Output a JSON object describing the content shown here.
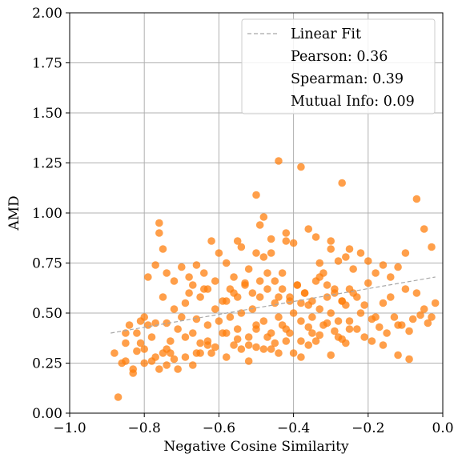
{
  "chart_data": {
    "type": "scatter",
    "xlabel": "Negative Cosine Similarity",
    "ylabel": "AMD",
    "xlim": [
      -1.0,
      0.0
    ],
    "ylim": [
      0.0,
      2.0
    ],
    "xticks": [
      "−1.0",
      "−0.8",
      "−0.6",
      "−0.4",
      "−0.2",
      "0.0"
    ],
    "xtick_values": [
      -1.0,
      -0.8,
      -0.6,
      -0.4,
      -0.2,
      0.0
    ],
    "yticks": [
      "0.00",
      "0.25",
      "0.50",
      "0.75",
      "1.00",
      "1.25",
      "1.50",
      "1.75",
      "2.00"
    ],
    "ytick_values": [
      0,
      0.25,
      0.5,
      0.75,
      1.0,
      1.25,
      1.5,
      1.75,
      2.0
    ],
    "grid": true,
    "legend_position": "top-right",
    "legend": {
      "fit_label": "Linear Fit",
      "pearson": "Pearson: 0.36",
      "spearman": "Spearman: 0.39",
      "mutual_info": "Mutual Info: 0.09"
    },
    "fit_line": {
      "x": [
        -0.89,
        -0.02
      ],
      "y": [
        0.4,
        0.68
      ]
    },
    "colors": {
      "points": "#ff7f0e",
      "fit": "#a8a8a8",
      "grid": "#b0b0b0"
    },
    "series": [
      {
        "x": [
          -0.87,
          -0.86,
          -0.85,
          -0.83,
          -0.82,
          -0.81,
          -0.8,
          -0.79,
          -0.78,
          -0.77,
          -0.76,
          -0.76,
          -0.75,
          -0.75,
          -0.74,
          -0.73,
          -0.72,
          -0.71,
          -0.7,
          -0.69,
          -0.68,
          -0.67,
          -0.66,
          -0.65,
          -0.64,
          -0.63,
          -0.62,
          -0.61,
          -0.6,
          -0.59,
          -0.58,
          -0.57,
          -0.56,
          -0.55,
          -0.54,
          -0.53,
          -0.52,
          -0.51,
          -0.5,
          -0.49,
          -0.48,
          -0.47,
          -0.46,
          -0.45,
          -0.44,
          -0.43,
          -0.42,
          -0.41,
          -0.4,
          -0.39,
          -0.38,
          -0.37,
          -0.36,
          -0.35,
          -0.34,
          -0.33,
          -0.32,
          -0.31,
          -0.3,
          -0.29,
          -0.28,
          -0.27,
          -0.26,
          -0.25,
          -0.24,
          -0.22,
          -0.2,
          -0.18,
          -0.16,
          -0.14,
          -0.12,
          -0.1,
          -0.08,
          -0.07,
          -0.05,
          -0.03,
          -0.02,
          -0.88,
          -0.85,
          -0.8,
          -0.77,
          -0.74,
          -0.72,
          -0.69,
          -0.66,
          -0.63,
          -0.61,
          -0.58,
          -0.55,
          -0.52,
          -0.5,
          -0.47,
          -0.45,
          -0.43,
          -0.41,
          -0.38,
          -0.36,
          -0.33,
          -0.31,
          -0.29,
          -0.27,
          -0.25,
          -0.23,
          -0.21,
          -0.19,
          -0.17,
          -0.15,
          -0.13,
          -0.11,
          -0.09,
          -0.06,
          -0.04,
          -0.44,
          -0.42,
          -0.4,
          -0.38,
          -0.46,
          -0.48,
          -0.5,
          -0.52,
          -0.54,
          -0.56,
          -0.58,
          -0.36,
          -0.34,
          -0.32,
          -0.3,
          -0.28,
          -0.6,
          -0.62,
          -0.64,
          -0.66,
          -0.68,
          -0.7,
          -0.72,
          -0.74,
          -0.26,
          -0.24,
          -0.22,
          -0.2,
          -0.18,
          -0.16,
          -0.14,
          -0.12,
          -0.1,
          -0.45,
          -0.43,
          -0.41,
          -0.39,
          -0.37,
          -0.35,
          -0.47,
          -0.49,
          -0.51,
          -0.53,
          -0.55,
          -0.57,
          -0.59,
          -0.33,
          -0.31,
          -0.29,
          -0.61,
          -0.63,
          -0.65,
          -0.67,
          -0.27,
          -0.25,
          -0.23,
          -0.21,
          -0.44,
          -0.38,
          -0.52,
          -0.48,
          -0.42,
          -0.36,
          -0.58,
          -0.56,
          -0.46,
          -0.4,
          -0.34,
          -0.3,
          -0.28,
          -0.26,
          -0.54,
          -0.5,
          -0.76,
          -0.75,
          -0.77,
          -0.79,
          -0.81,
          -0.83,
          -0.85,
          -0.84,
          -0.82,
          -0.8,
          -0.78,
          -0.74,
          -0.73,
          -0.71,
          -0.69,
          -0.67,
          -0.65,
          -0.63,
          -0.44,
          -0.38,
          -0.27,
          -0.5,
          -0.07,
          -0.05,
          -0.3,
          -0.55,
          -0.48,
          -0.33,
          -0.49,
          -0.46,
          -0.12,
          -0.09,
          -0.03,
          -0.16,
          -0.19,
          -0.35,
          -0.42,
          -0.25
        ],
        "y": [
          0.08,
          0.25,
          0.4,
          0.22,
          0.31,
          0.35,
          0.48,
          0.44,
          0.38,
          0.45,
          0.22,
          0.95,
          0.3,
          0.58,
          0.45,
          0.36,
          0.52,
          0.42,
          0.48,
          0.55,
          0.6,
          0.4,
          0.47,
          0.35,
          0.62,
          0.44,
          0.3,
          0.52,
          0.46,
          0.4,
          0.56,
          0.48,
          0.6,
          0.42,
          0.5,
          0.65,
          0.38,
          0.52,
          0.44,
          0.58,
          0.46,
          0.62,
          0.4,
          0.55,
          0.48,
          0.7,
          0.42,
          0.56,
          0.5,
          0.64,
          0.46,
          0.6,
          0.54,
          0.48,
          0.66,
          0.52,
          0.44,
          0.58,
          0.5,
          0.62,
          0.46,
          0.56,
          0.54,
          0.42,
          0.6,
          0.5,
          0.65,
          0.48,
          0.55,
          0.58,
          0.44,
          0.62,
          0.47,
          0.6,
          0.52,
          0.48,
          0.55,
          0.3,
          0.35,
          0.25,
          0.28,
          0.32,
          0.27,
          0.38,
          0.3,
          0.36,
          0.33,
          0.4,
          0.37,
          0.34,
          0.42,
          0.38,
          0.35,
          0.44,
          0.4,
          0.36,
          0.43,
          0.39,
          0.45,
          0.41,
          0.37,
          0.46,
          0.42,
          0.38,
          0.47,
          0.43,
          0.4,
          0.48,
          0.44,
          0.41,
          0.49,
          0.45,
          1.26,
          0.9,
          0.85,
          1.23,
          0.8,
          0.78,
          1.09,
          0.72,
          0.83,
          0.68,
          0.75,
          0.92,
          0.88,
          0.7,
          0.82,
          0.76,
          0.8,
          0.86,
          0.7,
          0.74,
          0.68,
          0.73,
          0.66,
          0.7,
          0.78,
          0.72,
          0.8,
          0.76,
          0.7,
          0.74,
          0.68,
          0.73,
          0.8,
          0.66,
          0.62,
          0.58,
          0.64,
          0.6,
          0.56,
          0.7,
          0.66,
          0.6,
          0.64,
          0.58,
          0.62,
          0.56,
          0.68,
          0.64,
          0.6,
          0.66,
          0.62,
          0.58,
          0.64,
          0.56,
          0.62,
          0.58,
          0.54,
          0.3,
          0.28,
          0.26,
          0.32,
          0.36,
          0.34,
          0.28,
          0.34,
          0.32,
          0.3,
          0.36,
          0.29,
          0.38,
          0.35,
          0.32,
          0.33,
          0.9,
          0.82,
          0.74,
          0.68,
          0.46,
          0.2,
          0.26,
          0.44,
          0.4,
          0.32,
          0.26,
          0.24,
          0.3,
          0.22,
          0.28,
          0.24,
          0.3,
          0.34,
          0.58,
          0.55,
          1.15,
          0.8,
          1.07,
          0.92,
          0.86,
          0.86,
          0.98,
          0.75,
          0.94,
          0.87,
          0.29,
          0.27,
          0.83,
          0.34,
          0.36,
          0.4,
          0.86,
          0.82
        ]
      }
    ]
  }
}
